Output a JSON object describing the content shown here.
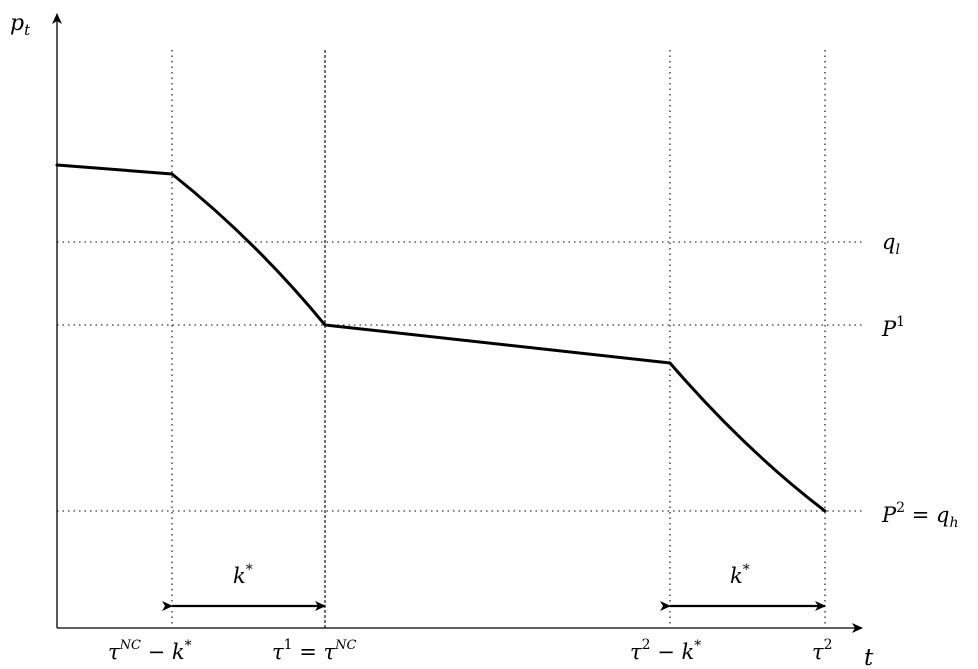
{
  "axes": {
    "y_label": "p",
    "y_label_sub": "t",
    "x_label": "t"
  },
  "levels": [
    {
      "id": "ql",
      "base": "q",
      "sub": "l"
    },
    {
      "id": "p1",
      "base": "P",
      "sup": "1"
    },
    {
      "id": "p2",
      "base": "P",
      "sup": "2",
      "eq": " = ",
      "eq_base": "q",
      "eq_sub": "h"
    }
  ],
  "time_marks": [
    {
      "id": "tnc-minus-k",
      "base": "τ",
      "sup": "NC",
      "rest": " − k",
      "rest_sup": "*"
    },
    {
      "id": "tau1",
      "base": "τ",
      "sup": "1",
      "eq": " = ",
      "eq_base": "τ",
      "eq_sup": "NC"
    },
    {
      "id": "tau2-minus-k",
      "base": "τ",
      "sup": "2",
      "rest": " − k",
      "rest_sup": "*"
    },
    {
      "id": "tau2",
      "base": "τ",
      "sup": "2"
    }
  ],
  "intervals": [
    {
      "id": "first",
      "base": "k",
      "sup": "*"
    },
    {
      "id": "second",
      "base": "k",
      "sup": "*"
    }
  ]
}
